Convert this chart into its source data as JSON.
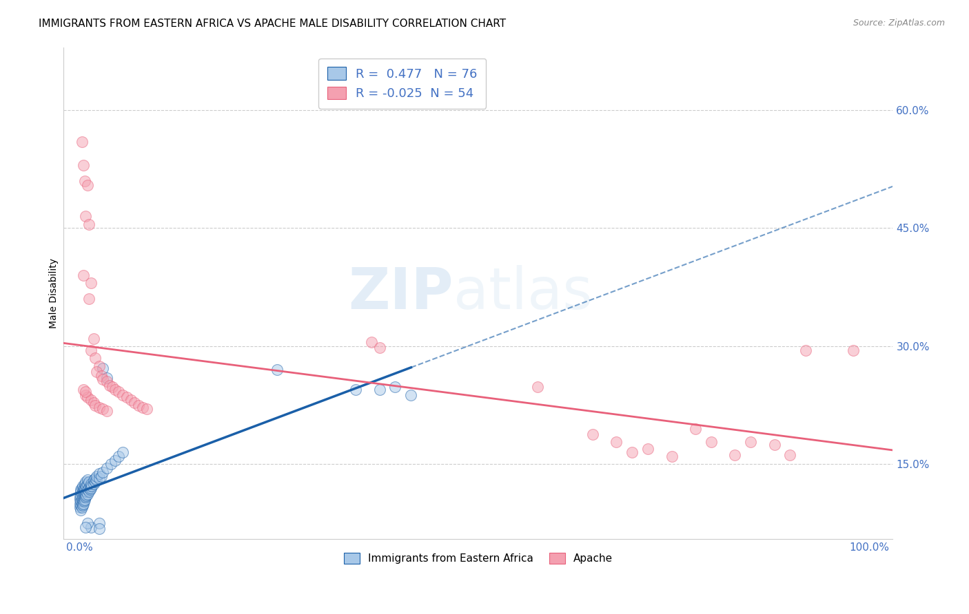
{
  "title": "IMMIGRANTS FROM EASTERN AFRICA VS APACHE MALE DISABILITY CORRELATION CHART",
  "source": "Source: ZipAtlas.com",
  "ylabel": "Male Disability",
  "legend_label1": "Immigrants from Eastern Africa",
  "legend_label2": "Apache",
  "r1": 0.477,
  "n1": 76,
  "r2": -0.025,
  "n2": 54,
  "blue_color": "#a8c8e8",
  "pink_color": "#f4a0b0",
  "blue_line_color": "#1a5fa8",
  "pink_line_color": "#e8607a",
  "blue_scatter": [
    [
      0.001,
      0.095
    ],
    [
      0.001,
      0.1
    ],
    [
      0.001,
      0.105
    ],
    [
      0.001,
      0.108
    ],
    [
      0.002,
      0.092
    ],
    [
      0.002,
      0.098
    ],
    [
      0.002,
      0.103
    ],
    [
      0.002,
      0.11
    ],
    [
      0.002,
      0.115
    ],
    [
      0.002,
      0.118
    ],
    [
      0.003,
      0.095
    ],
    [
      0.003,
      0.1
    ],
    [
      0.003,
      0.105
    ],
    [
      0.003,
      0.112
    ],
    [
      0.003,
      0.12
    ],
    [
      0.004,
      0.098
    ],
    [
      0.004,
      0.103
    ],
    [
      0.004,
      0.108
    ],
    [
      0.004,
      0.115
    ],
    [
      0.004,
      0.122
    ],
    [
      0.005,
      0.1
    ],
    [
      0.005,
      0.105
    ],
    [
      0.005,
      0.112
    ],
    [
      0.005,
      0.118
    ],
    [
      0.006,
      0.103
    ],
    [
      0.006,
      0.108
    ],
    [
      0.006,
      0.115
    ],
    [
      0.006,
      0.12
    ],
    [
      0.007,
      0.105
    ],
    [
      0.007,
      0.11
    ],
    [
      0.007,
      0.118
    ],
    [
      0.007,
      0.125
    ],
    [
      0.008,
      0.108
    ],
    [
      0.008,
      0.112
    ],
    [
      0.008,
      0.12
    ],
    [
      0.008,
      0.128
    ],
    [
      0.009,
      0.11
    ],
    [
      0.009,
      0.115
    ],
    [
      0.009,
      0.122
    ],
    [
      0.01,
      0.112
    ],
    [
      0.01,
      0.118
    ],
    [
      0.01,
      0.125
    ],
    [
      0.01,
      0.13
    ],
    [
      0.012,
      0.115
    ],
    [
      0.012,
      0.12
    ],
    [
      0.012,
      0.128
    ],
    [
      0.014,
      0.118
    ],
    [
      0.014,
      0.122
    ],
    [
      0.015,
      0.12
    ],
    [
      0.015,
      0.125
    ],
    [
      0.015,
      0.07
    ],
    [
      0.016,
      0.122
    ],
    [
      0.018,
      0.125
    ],
    [
      0.018,
      0.13
    ],
    [
      0.02,
      0.128
    ],
    [
      0.02,
      0.132
    ],
    [
      0.022,
      0.13
    ],
    [
      0.022,
      0.135
    ],
    [
      0.025,
      0.132
    ],
    [
      0.025,
      0.138
    ],
    [
      0.028,
      0.135
    ],
    [
      0.03,
      0.14
    ],
    [
      0.035,
      0.145
    ],
    [
      0.04,
      0.15
    ],
    [
      0.045,
      0.155
    ],
    [
      0.05,
      0.16
    ],
    [
      0.055,
      0.165
    ],
    [
      0.25,
      0.27
    ],
    [
      0.35,
      0.245
    ],
    [
      0.38,
      0.245
    ],
    [
      0.025,
      0.075
    ],
    [
      0.025,
      0.068
    ],
    [
      0.03,
      0.272
    ],
    [
      0.035,
      0.26
    ],
    [
      0.4,
      0.248
    ],
    [
      0.42,
      0.238
    ],
    [
      0.01,
      0.075
    ],
    [
      0.008,
      0.07
    ]
  ],
  "pink_scatter": [
    [
      0.003,
      0.56
    ],
    [
      0.005,
      0.53
    ],
    [
      0.007,
      0.51
    ],
    [
      0.01,
      0.505
    ],
    [
      0.008,
      0.465
    ],
    [
      0.012,
      0.455
    ],
    [
      0.005,
      0.39
    ],
    [
      0.015,
      0.38
    ],
    [
      0.012,
      0.36
    ],
    [
      0.018,
      0.31
    ],
    [
      0.015,
      0.295
    ],
    [
      0.02,
      0.285
    ],
    [
      0.025,
      0.275
    ],
    [
      0.022,
      0.268
    ],
    [
      0.028,
      0.262
    ],
    [
      0.03,
      0.258
    ],
    [
      0.035,
      0.255
    ],
    [
      0.038,
      0.25
    ],
    [
      0.042,
      0.248
    ],
    [
      0.045,
      0.245
    ],
    [
      0.05,
      0.242
    ],
    [
      0.055,
      0.238
    ],
    [
      0.06,
      0.235
    ],
    [
      0.065,
      0.232
    ],
    [
      0.07,
      0.228
    ],
    [
      0.075,
      0.225
    ],
    [
      0.08,
      0.222
    ],
    [
      0.085,
      0.22
    ],
    [
      0.008,
      0.238
    ],
    [
      0.01,
      0.235
    ],
    [
      0.015,
      0.232
    ],
    [
      0.018,
      0.228
    ],
    [
      0.02,
      0.225
    ],
    [
      0.025,
      0.222
    ],
    [
      0.03,
      0.22
    ],
    [
      0.035,
      0.218
    ],
    [
      0.005,
      0.245
    ],
    [
      0.008,
      0.242
    ],
    [
      0.37,
      0.305
    ],
    [
      0.38,
      0.298
    ],
    [
      0.58,
      0.248
    ],
    [
      0.65,
      0.188
    ],
    [
      0.68,
      0.178
    ],
    [
      0.7,
      0.165
    ],
    [
      0.72,
      0.17
    ],
    [
      0.75,
      0.16
    ],
    [
      0.78,
      0.195
    ],
    [
      0.8,
      0.178
    ],
    [
      0.83,
      0.162
    ],
    [
      0.85,
      0.178
    ],
    [
      0.88,
      0.175
    ],
    [
      0.9,
      0.162
    ],
    [
      0.92,
      0.295
    ],
    [
      0.98,
      0.295
    ]
  ],
  "xlim": [
    -0.02,
    1.03
  ],
  "ylim": [
    0.055,
    0.68
  ],
  "xticks": [
    0.0,
    0.1,
    0.2,
    0.3,
    0.4,
    0.5,
    0.6,
    0.7,
    0.8,
    0.9,
    1.0
  ],
  "xtick_labels": [
    "0.0%",
    "",
    "",
    "",
    "",
    "",
    "",
    "",
    "",
    "",
    "100.0%"
  ],
  "ytick_positions": [
    0.15,
    0.3,
    0.45,
    0.6
  ],
  "ytick_labels": [
    "15.0%",
    "30.0%",
    "45.0%",
    "60.0%"
  ],
  "label_color": "#4472c4",
  "grid_color": "#cccccc",
  "background_color": "#ffffff",
  "watermark_zip": "ZIP",
  "watermark_atlas": "atlas",
  "title_fontsize": 11,
  "axis_label_fontsize": 10,
  "tick_fontsize": 11
}
